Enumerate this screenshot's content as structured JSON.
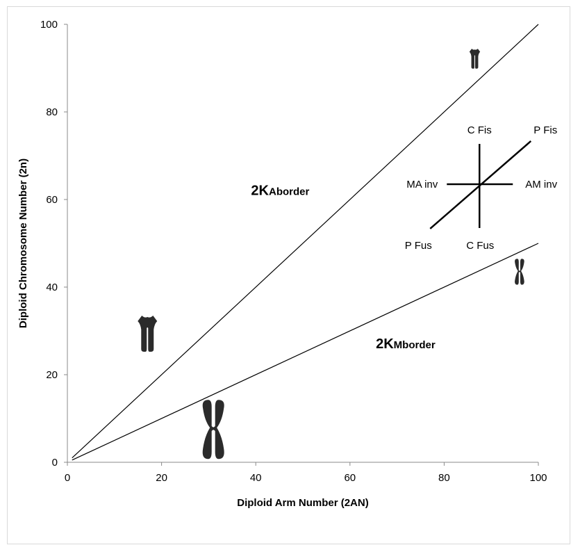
{
  "chart_data": {
    "type": "line",
    "xlabel": "Diploid Arm Number (2AN)",
    "ylabel": "Diploid Chromosome Number (2n)",
    "xlim": [
      0,
      100
    ],
    "ylim": [
      0,
      100
    ],
    "x_ticks": [
      "0",
      "20",
      "40",
      "60",
      "80",
      "100"
    ],
    "y_ticks": [
      "0",
      "20",
      "40",
      "60",
      "80",
      "100"
    ],
    "grid": false,
    "legend": "none",
    "series": [
      {
        "x": [
          1,
          100
        ],
        "y": [
          1,
          100
        ],
        "color": "#000000"
      },
      {
        "x": [
          1,
          100
        ],
        "y": [
          0.5,
          50
        ],
        "color": "#000000"
      }
    ],
    "border_labels": [
      {
        "prefix": "2K",
        "suffix": "Aborder",
        "x": 39,
        "y": 61
      },
      {
        "prefix": "2K",
        "suffix": "Mborder",
        "x": 65.5,
        "y": 26
      }
    ],
    "transition_diagram": {
      "center": [
        87.5,
        63.5
      ],
      "labels": {
        "c_fis": "C Fis",
        "p_fis": "P Fis",
        "ma_inv": "MA inv",
        "am_inv": "AM inv",
        "p_fus": "P Fus",
        "c_fus": "C Fus"
      }
    },
    "icons": [
      {
        "name": "acrocentric-chromosome-icon",
        "x": 17,
        "y": 30,
        "size": 1.0
      },
      {
        "name": "metacentric-chromosome-icon",
        "x": 31,
        "y": 7.5,
        "size": 1.25
      },
      {
        "name": "acrocentric-chromosome-icon",
        "x": 86.5,
        "y": 92.5,
        "size": 0.55
      },
      {
        "name": "metacentric-chromosome-icon",
        "x": 96,
        "y": 43.5,
        "size": 0.55
      }
    ]
  }
}
